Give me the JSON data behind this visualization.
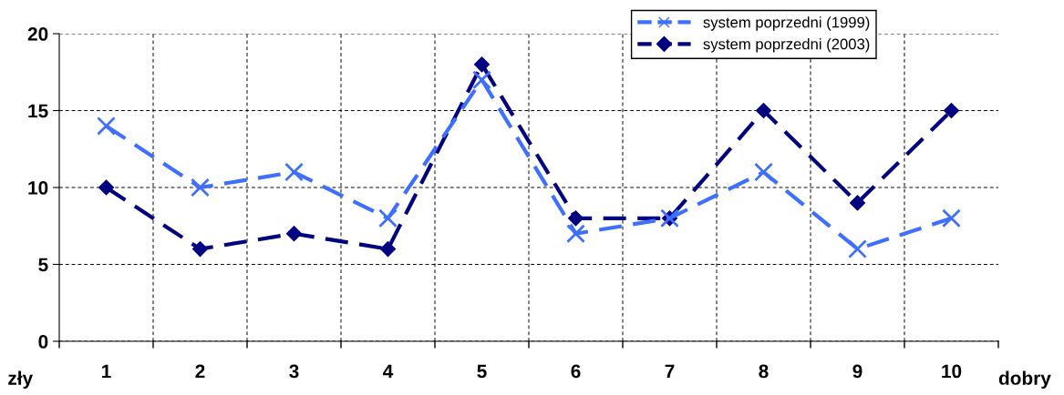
{
  "chart_data": {
    "type": "line",
    "categories": [
      "1",
      "2",
      "3",
      "4",
      "5",
      "6",
      "7",
      "8",
      "9",
      "10"
    ],
    "series": [
      {
        "name": "system poprzedni (1999)",
        "color": "#3f6fff",
        "marker": "cross",
        "values": [
          14,
          10,
          11,
          8,
          17,
          7,
          8,
          11,
          6,
          8
        ]
      },
      {
        "name": "system poprzedni (2003)",
        "color": "#000080",
        "marker": "diamond",
        "values": [
          10,
          6,
          7,
          6,
          18,
          8,
          8,
          15,
          9,
          15
        ]
      }
    ],
    "ylim": [
      0,
      20
    ],
    "yticks": [
      0,
      5,
      10,
      15,
      20
    ],
    "grid": true,
    "legend": "top right",
    "line_style": "dashed",
    "annotations": [
      "zły",
      "dobry"
    ]
  }
}
